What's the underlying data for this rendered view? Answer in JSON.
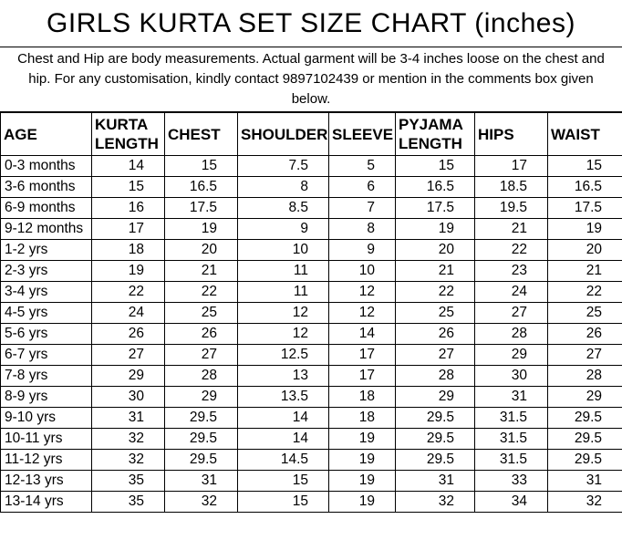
{
  "title": "GIRLS KURTA SET SIZE CHART (inches)",
  "note": "Chest and Hip are body measurements. Actual garment will be 3-4 inches loose on the chest and hip. For any customisation, kindly contact 9897102439 or mention in the comments box given below.",
  "chart_data": {
    "type": "table",
    "title": "GIRLS KURTA SET SIZE CHART (inches)",
    "unit": "inches",
    "columns": [
      "AGE",
      "KURTA LENGTH",
      "CHEST",
      "SHOULDER",
      "SLEEVE",
      "PYJAMA LENGTH",
      "HIPS",
      "WAIST"
    ],
    "rows": [
      [
        "0-3 months",
        "14",
        "15",
        "7.5",
        "5",
        "15",
        "17",
        "15"
      ],
      [
        "3-6 months",
        "15",
        "16.5",
        "8",
        "6",
        "16.5",
        "18.5",
        "16.5"
      ],
      [
        "6-9 months",
        "16",
        "17.5",
        "8.5",
        "7",
        "17.5",
        "19.5",
        "17.5"
      ],
      [
        "9-12 months",
        "17",
        "19",
        "9",
        "8",
        "19",
        "21",
        "19"
      ],
      [
        "1-2 yrs",
        "18",
        "20",
        "10",
        "9",
        "20",
        "22",
        "20"
      ],
      [
        "2-3 yrs",
        "19",
        "21",
        "11",
        "10",
        "21",
        "23",
        "21"
      ],
      [
        "3-4 yrs",
        "22",
        "22",
        "11",
        "12",
        "22",
        "24",
        "22"
      ],
      [
        "4-5 yrs",
        "24",
        "25",
        "12",
        "12",
        "25",
        "27",
        "25"
      ],
      [
        "5-6 yrs",
        "26",
        "26",
        "12",
        "14",
        "26",
        "28",
        "26"
      ],
      [
        "6-7 yrs",
        "27",
        "27",
        "12.5",
        "17",
        "27",
        "29",
        "27"
      ],
      [
        "7-8 yrs",
        "29",
        "28",
        "13",
        "17",
        "28",
        "30",
        "28"
      ],
      [
        "8-9 yrs",
        "30",
        "29",
        "13.5",
        "18",
        "29",
        "31",
        "29"
      ],
      [
        "9-10 yrs",
        "31",
        "29.5",
        "14",
        "18",
        "29.5",
        "31.5",
        "29.5"
      ],
      [
        "10-11 yrs",
        "32",
        "29.5",
        "14",
        "19",
        "29.5",
        "31.5",
        "29.5"
      ],
      [
        "11-12 yrs",
        "32",
        "29.5",
        "14.5",
        "19",
        "29.5",
        "31.5",
        "29.5"
      ],
      [
        "12-13 yrs",
        "35",
        "31",
        "15",
        "19",
        "31",
        "33",
        "31"
      ],
      [
        "13-14 yrs",
        "35",
        "32",
        "15",
        "19",
        "32",
        "34",
        "32"
      ]
    ]
  }
}
